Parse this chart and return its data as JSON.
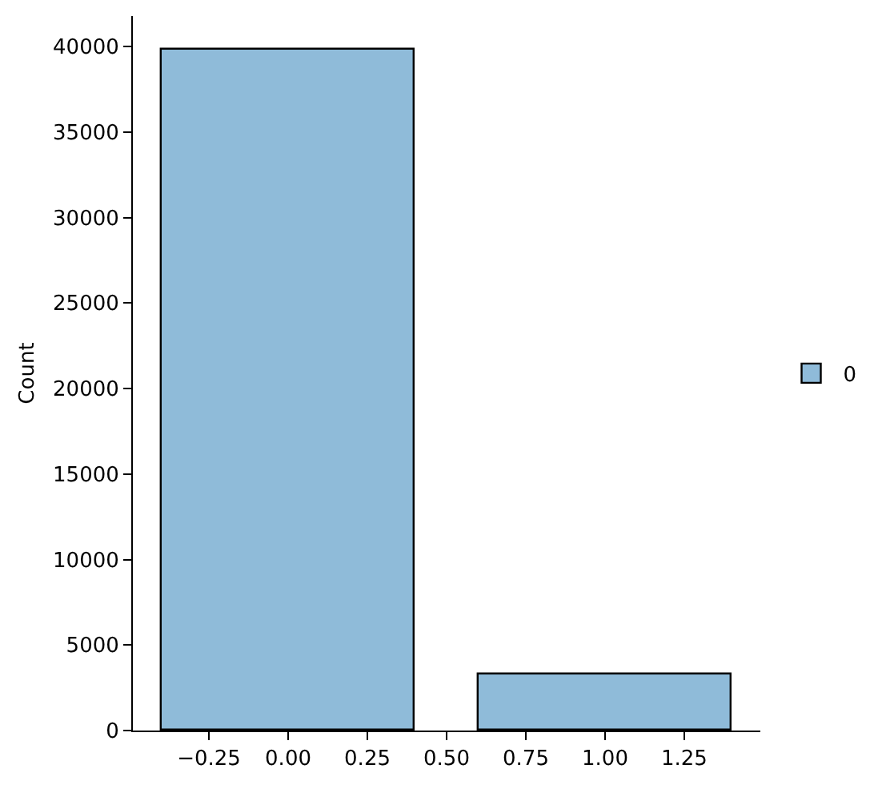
{
  "chart_data": {
    "type": "bar",
    "ylabel": "Count",
    "x": [
      0,
      1
    ],
    "series": [
      {
        "name": "0",
        "color": "#8fbbd9",
        "values": [
          39800,
          3300
        ]
      }
    ],
    "xlim": [
      -0.49,
      1.49
    ],
    "xticks": [
      {
        "value": -0.25,
        "label": "−0.25"
      },
      {
        "value": 0,
        "label": "0.00"
      },
      {
        "value": 0.25,
        "label": "0.25"
      },
      {
        "value": 0.5,
        "label": "0.50"
      },
      {
        "value": 0.75,
        "label": "0.75"
      },
      {
        "value": 1,
        "label": "1.00"
      },
      {
        "value": 1.25,
        "label": "1.25"
      }
    ],
    "ylim": [
      0,
      41780
    ],
    "yticks": [
      0,
      5000,
      10000,
      15000,
      20000,
      25000,
      30000,
      35000,
      40000
    ],
    "grid": false,
    "legend": "right"
  }
}
